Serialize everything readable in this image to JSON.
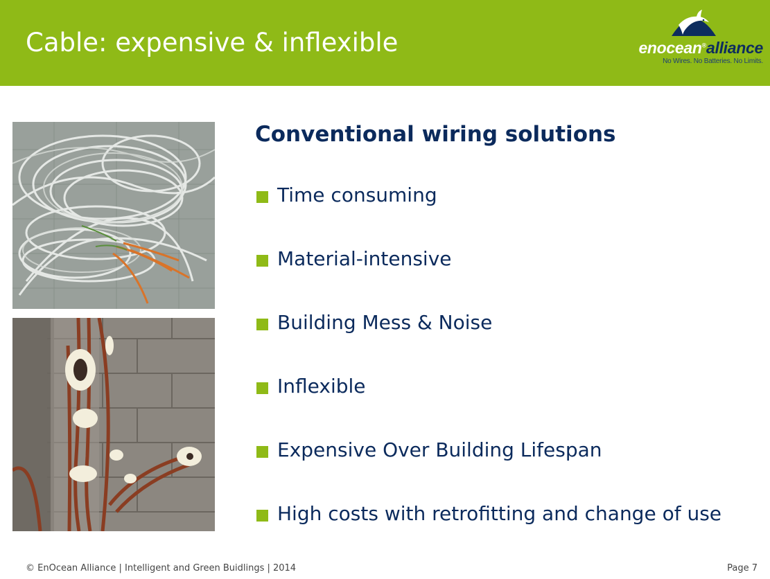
{
  "header": {
    "title": "Cable: expensive & inflexible",
    "background_color": "#8fba17"
  },
  "logo": {
    "word_main": "enocean",
    "registered_mark": "®",
    "word_alliance": "alliance",
    "tagline": "No Wires. No Batteries. No Limits.",
    "icon": "dolphin-dome-icon"
  },
  "photos": {
    "top": {
      "icon": "tangled-cables-photo"
    },
    "bottom": {
      "icon": "wall-cable-conduits-photo"
    }
  },
  "content": {
    "heading": "Conventional wiring solutions",
    "text_color": "#0b2a5c",
    "bullet_color": "#8fba17",
    "bullets": [
      "Time consuming",
      "Material-intensive",
      "Building Mess & Noise",
      "Inflexible",
      "Expensive Over Building Lifespan",
      "High costs with retrofitting and change of use"
    ]
  },
  "footer": {
    "left": "© EnOcean Alliance  |  Intelligent and Green Buidlings  |  2014",
    "right": "Page 7"
  }
}
